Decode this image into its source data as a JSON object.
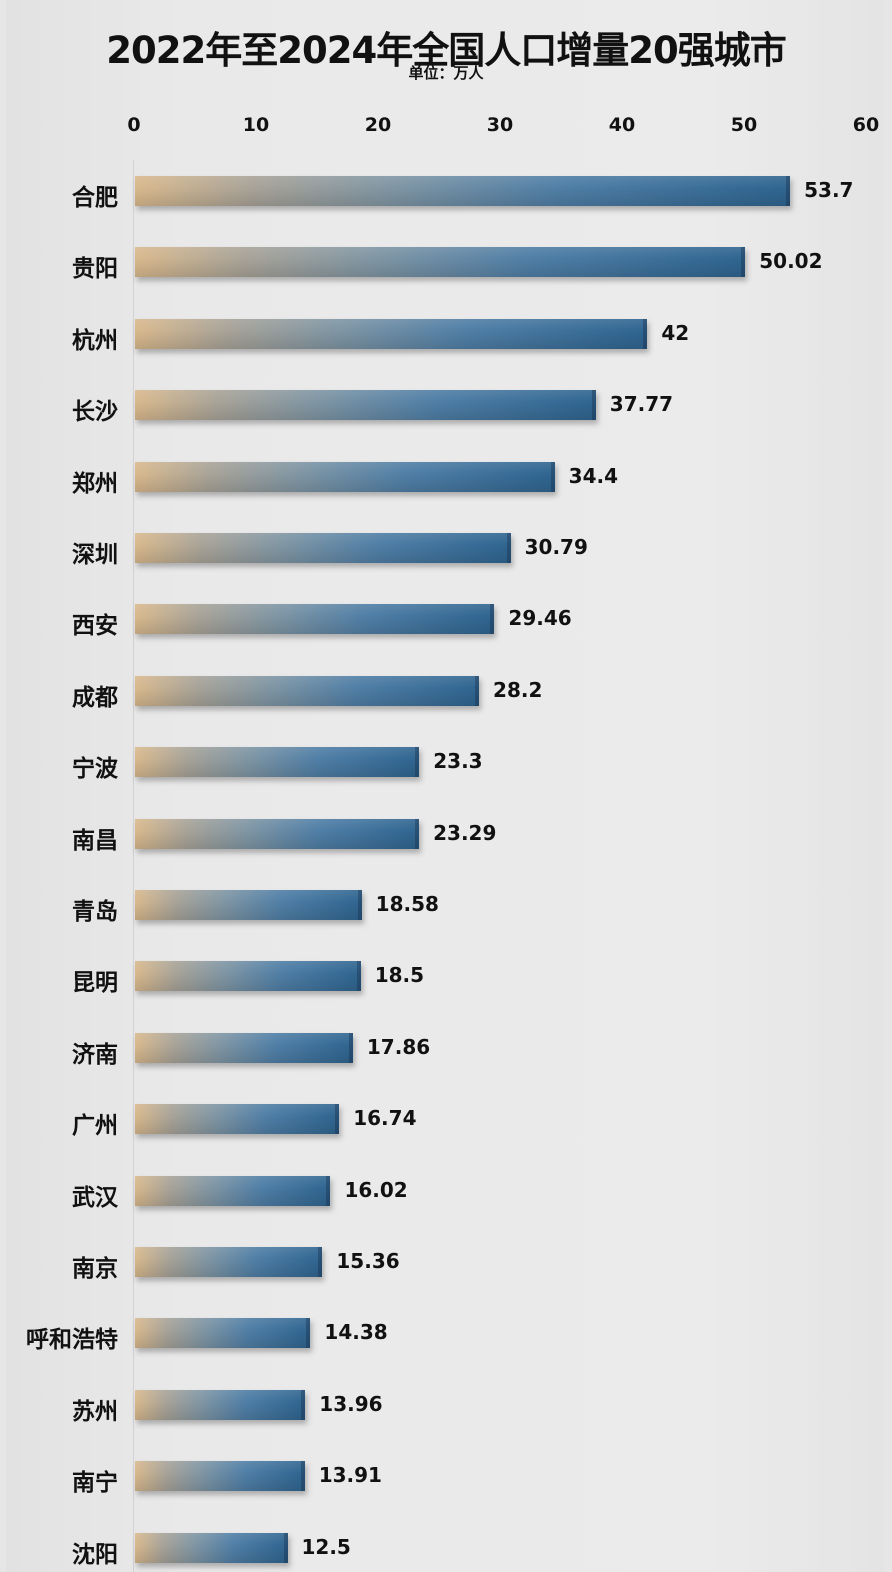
{
  "chart_data": {
    "type": "bar",
    "orientation": "horizontal",
    "title": "2022年至2024年全国人口增量20强城市",
    "subtitle": "单位：万人",
    "xlabel": "",
    "ylabel": "",
    "xlim": [
      0,
      60
    ],
    "x_ticks": [
      "0",
      "10",
      "20",
      "30",
      "40",
      "50",
      "60"
    ],
    "axis_position": "top",
    "grid": false,
    "legend": null,
    "categories": [
      "合肥",
      "贵阳",
      "杭州",
      "长沙",
      "郑州",
      "深圳",
      "西安",
      "成都",
      "宁波",
      "南昌",
      "青岛",
      "昆明",
      "济南",
      "广州",
      "武汉",
      "南京",
      "呼和浩特",
      "苏州",
      "南宁",
      "沈阳"
    ],
    "values": [
      53.7,
      50.02,
      42,
      37.77,
      34.4,
      30.79,
      29.46,
      28.2,
      23.3,
      23.29,
      18.58,
      18.5,
      17.86,
      16.74,
      16.02,
      15.36,
      14.38,
      13.96,
      13.91,
      12.5
    ],
    "value_labels": [
      "53.7",
      "50.02",
      "42",
      "37.77",
      "34.4",
      "30.79",
      "29.46",
      "28.2",
      "23.3",
      "23.29",
      "18.58",
      "18.5",
      "17.86",
      "16.74",
      "16.02",
      "15.36",
      "14.38",
      "13.96",
      "13.91",
      "12.5"
    ],
    "bar_gradient": [
      "#d9b98d",
      "#2f6590"
    ]
  },
  "header": {
    "title": "2022年至2024年全国人口增量20强城市",
    "unit": "单位：万人"
  },
  "axis": {
    "ticks": [
      "0",
      "10",
      "20",
      "30",
      "40",
      "50",
      "60"
    ]
  },
  "colors": {
    "background": "#e8e8e8",
    "bar_start": "#d9b98d",
    "bar_end": "#2f6590",
    "text": "#111111"
  }
}
